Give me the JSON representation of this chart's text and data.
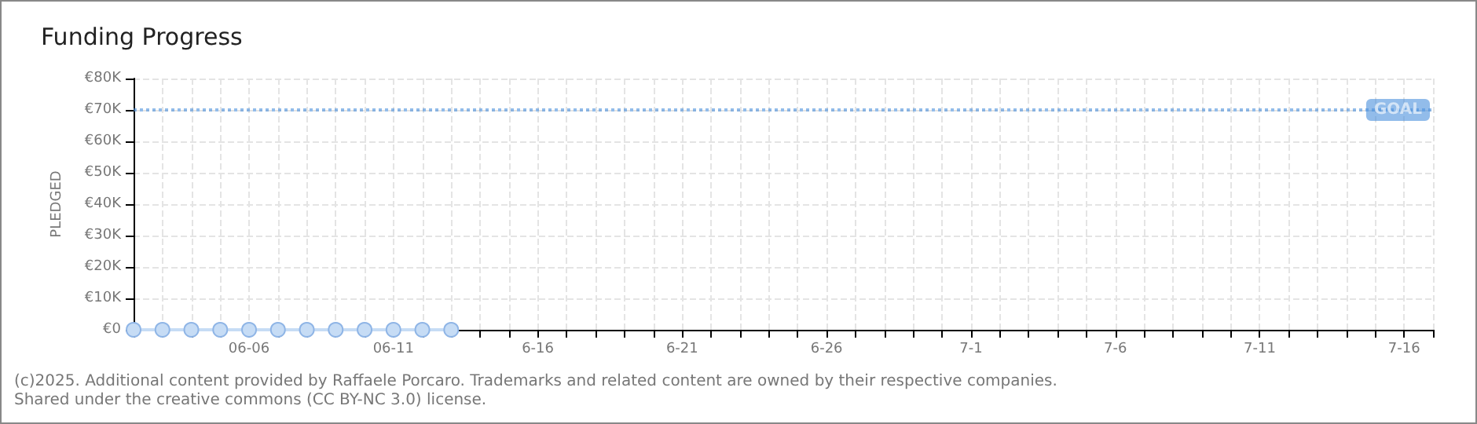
{
  "chart_data": {
    "type": "line",
    "title": "Funding Progress",
    "ylabel": "PLEDGED",
    "x": [
      "--06-02",
      "--06-03",
      "--06-04",
      "--06-05",
      "--06-06",
      "--06-07",
      "--06-08",
      "--06-09",
      "--06-10",
      "--06-11",
      "--06-12",
      "--06-13"
    ],
    "series": [
      {
        "color": "#c6dcf5",
        "values": [
          0,
          0,
          0,
          0,
          0,
          0,
          0,
          0,
          0,
          0,
          0,
          0
        ]
      }
    ],
    "xlim": [
      "--06-02",
      "--07-17"
    ],
    "xticks": [
      {
        "value": "--06-02",
        "label": null
      },
      {
        "value": "--06-03",
        "label": null
      },
      {
        "value": "--06-04",
        "label": null
      },
      {
        "value": "--06-05",
        "label": null
      },
      {
        "value": "--06-06",
        "label": "06-06"
      },
      {
        "value": "--06-07",
        "label": null
      },
      {
        "value": "--06-08",
        "label": null
      },
      {
        "value": "--06-09",
        "label": null
      },
      {
        "value": "--06-10",
        "label": null
      },
      {
        "value": "--06-11",
        "label": "06-11"
      },
      {
        "value": "--06-12",
        "label": null
      },
      {
        "value": "--06-13",
        "label": null
      },
      {
        "value": "--06-14",
        "label": null
      },
      {
        "value": "--06-15",
        "label": null
      },
      {
        "value": "--06-16",
        "label": "6-16"
      },
      {
        "value": "--06-17",
        "label": null
      },
      {
        "value": "--06-18",
        "label": null
      },
      {
        "value": "--06-19",
        "label": null
      },
      {
        "value": "--06-20",
        "label": null
      },
      {
        "value": "--06-21",
        "label": "6-21"
      },
      {
        "value": "--06-22",
        "label": null
      },
      {
        "value": "--06-23",
        "label": null
      },
      {
        "value": "--06-24",
        "label": null
      },
      {
        "value": "--06-25",
        "label": null
      },
      {
        "value": "--06-26",
        "label": "6-26"
      },
      {
        "value": "--06-27",
        "label": null
      },
      {
        "value": "--06-28",
        "label": null
      },
      {
        "value": "--06-29",
        "label": null
      },
      {
        "value": "--06-30",
        "label": null
      },
      {
        "value": "--07-01",
        "label": "7-1"
      },
      {
        "value": "--07-02",
        "label": null
      },
      {
        "value": "--07-03",
        "label": null
      },
      {
        "value": "--07-04",
        "label": null
      },
      {
        "value": "--07-05",
        "label": null
      },
      {
        "value": "--07-06",
        "label": "7-6"
      },
      {
        "value": "--07-07",
        "label": null
      },
      {
        "value": "--07-08",
        "label": null
      },
      {
        "value": "--07-09",
        "label": null
      },
      {
        "value": "--07-10",
        "label": null
      },
      {
        "value": "--07-11",
        "label": "7-11"
      },
      {
        "value": "--07-12",
        "label": null
      },
      {
        "value": "--07-13",
        "label": null
      },
      {
        "value": "--07-14",
        "label": null
      },
      {
        "value": "--07-15",
        "label": null
      },
      {
        "value": "--07-16",
        "label": "7-16"
      },
      {
        "value": "--07-17",
        "label": null
      }
    ],
    "ylim": [
      0,
      80000
    ],
    "yticks": [
      {
        "value": 0,
        "label": "€0"
      },
      {
        "value": 10000,
        "label": "€10K"
      },
      {
        "value": 20000,
        "label": "€20K"
      },
      {
        "value": 30000,
        "label": "€30K"
      },
      {
        "value": 40000,
        "label": "€40K"
      },
      {
        "value": 50000,
        "label": "€50K"
      },
      {
        "value": 60000,
        "label": "€60K"
      },
      {
        "value": 70000,
        "label": "€70K"
      },
      {
        "value": 80000,
        "label": "€80K"
      }
    ],
    "ref_lines": [
      {
        "axis": "y",
        "value": 70000,
        "label": "GOAL",
        "color": "#4a8fdc",
        "line_style": "dotted"
      }
    ],
    "grid": true,
    "marker": "circle",
    "line_style": "solid",
    "annotations": [
      "(c)2025. Additional content provided by Raffaele Porcaro. Trademarks and related content are owned by their respective companies.",
      "Shared under the creative commons (CC BY-NC 3.0) license."
    ]
  }
}
